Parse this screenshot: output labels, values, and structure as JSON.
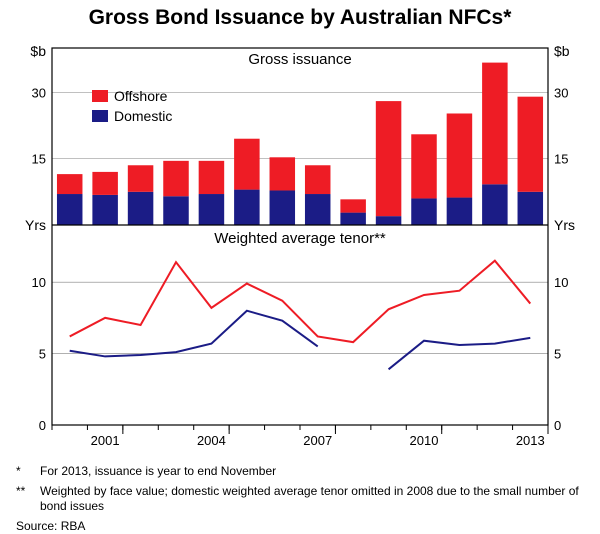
{
  "title": "Gross Bond Issuance by Australian NFCs*",
  "title_fontsize": 21,
  "panels": {
    "top": {
      "subtitle": "Gross issuance",
      "ylabel_left": "$b",
      "ylabel_right": "$b",
      "ylim": [
        0,
        40
      ],
      "yticks": [
        15,
        30
      ],
      "series": [
        {
          "name": "Offshore",
          "color": "#ee1c25"
        },
        {
          "name": "Domestic",
          "color": "#1b1c86"
        }
      ],
      "years": [
        2000,
        2001,
        2002,
        2003,
        2004,
        2005,
        2006,
        2007,
        2008,
        2009,
        2010,
        2011,
        2012,
        2013
      ],
      "domestic": [
        7.0,
        6.8,
        7.5,
        6.5,
        7.0,
        8.0,
        7.8,
        7.0,
        2.8,
        2.0,
        6.0,
        6.2,
        9.2,
        7.5
      ],
      "offshore": [
        4.5,
        5.2,
        6.0,
        8.0,
        7.5,
        11.5,
        7.5,
        6.5,
        3.0,
        26.0,
        14.5,
        19.0,
        27.5,
        21.5
      ],
      "bar_width": 0.72
    },
    "bottom": {
      "subtitle": "Weighted average tenor**",
      "ylabel_left": "Yrs",
      "ylabel_right": "Yrs",
      "ylim": [
        0,
        14
      ],
      "yticks": [
        0,
        5,
        10
      ],
      "years": [
        2000,
        2001,
        2002,
        2003,
        2004,
        2005,
        2006,
        2007,
        2008,
        2009,
        2010,
        2011,
        2012,
        2013
      ],
      "offshore_line": {
        "color": "#ee1c25",
        "width": 2,
        "values": [
          6.2,
          7.5,
          7.0,
          11.4,
          8.2,
          9.9,
          8.7,
          6.2,
          5.8,
          8.1,
          9.1,
          9.4,
          11.5,
          8.5
        ]
      },
      "domestic_line": {
        "color": "#1b1c86",
        "width": 2,
        "segments": [
          {
            "years": [
              2000,
              2001,
              2002,
              2003,
              2004,
              2005,
              2006,
              2007
            ],
            "values": [
              5.2,
              4.8,
              4.9,
              5.1,
              5.7,
              8.0,
              7.3,
              5.5
            ]
          },
          {
            "years": [
              2009,
              2010,
              2011,
              2012,
              2013
            ],
            "values": [
              3.9,
              5.9,
              5.6,
              5.7,
              6.1
            ]
          }
        ]
      }
    }
  },
  "xaxis": {
    "years": [
      2000,
      2001,
      2002,
      2003,
      2004,
      2005,
      2006,
      2007,
      2008,
      2009,
      2010,
      2011,
      2012,
      2013
    ],
    "tick_labels": [
      2001,
      2004,
      2007,
      2010,
      2013
    ]
  },
  "footnotes": [
    {
      "mark": "*",
      "text": "For 2013, issuance is year to end November"
    },
    {
      "mark": "**",
      "text": "Weighted by face value; domestic weighted average tenor omitted in 2008 due to the small number of bond issues"
    }
  ],
  "source_label": "Source: RBA",
  "colors": {
    "border": "#000000",
    "grid": "#808080",
    "background": "#ffffff"
  }
}
